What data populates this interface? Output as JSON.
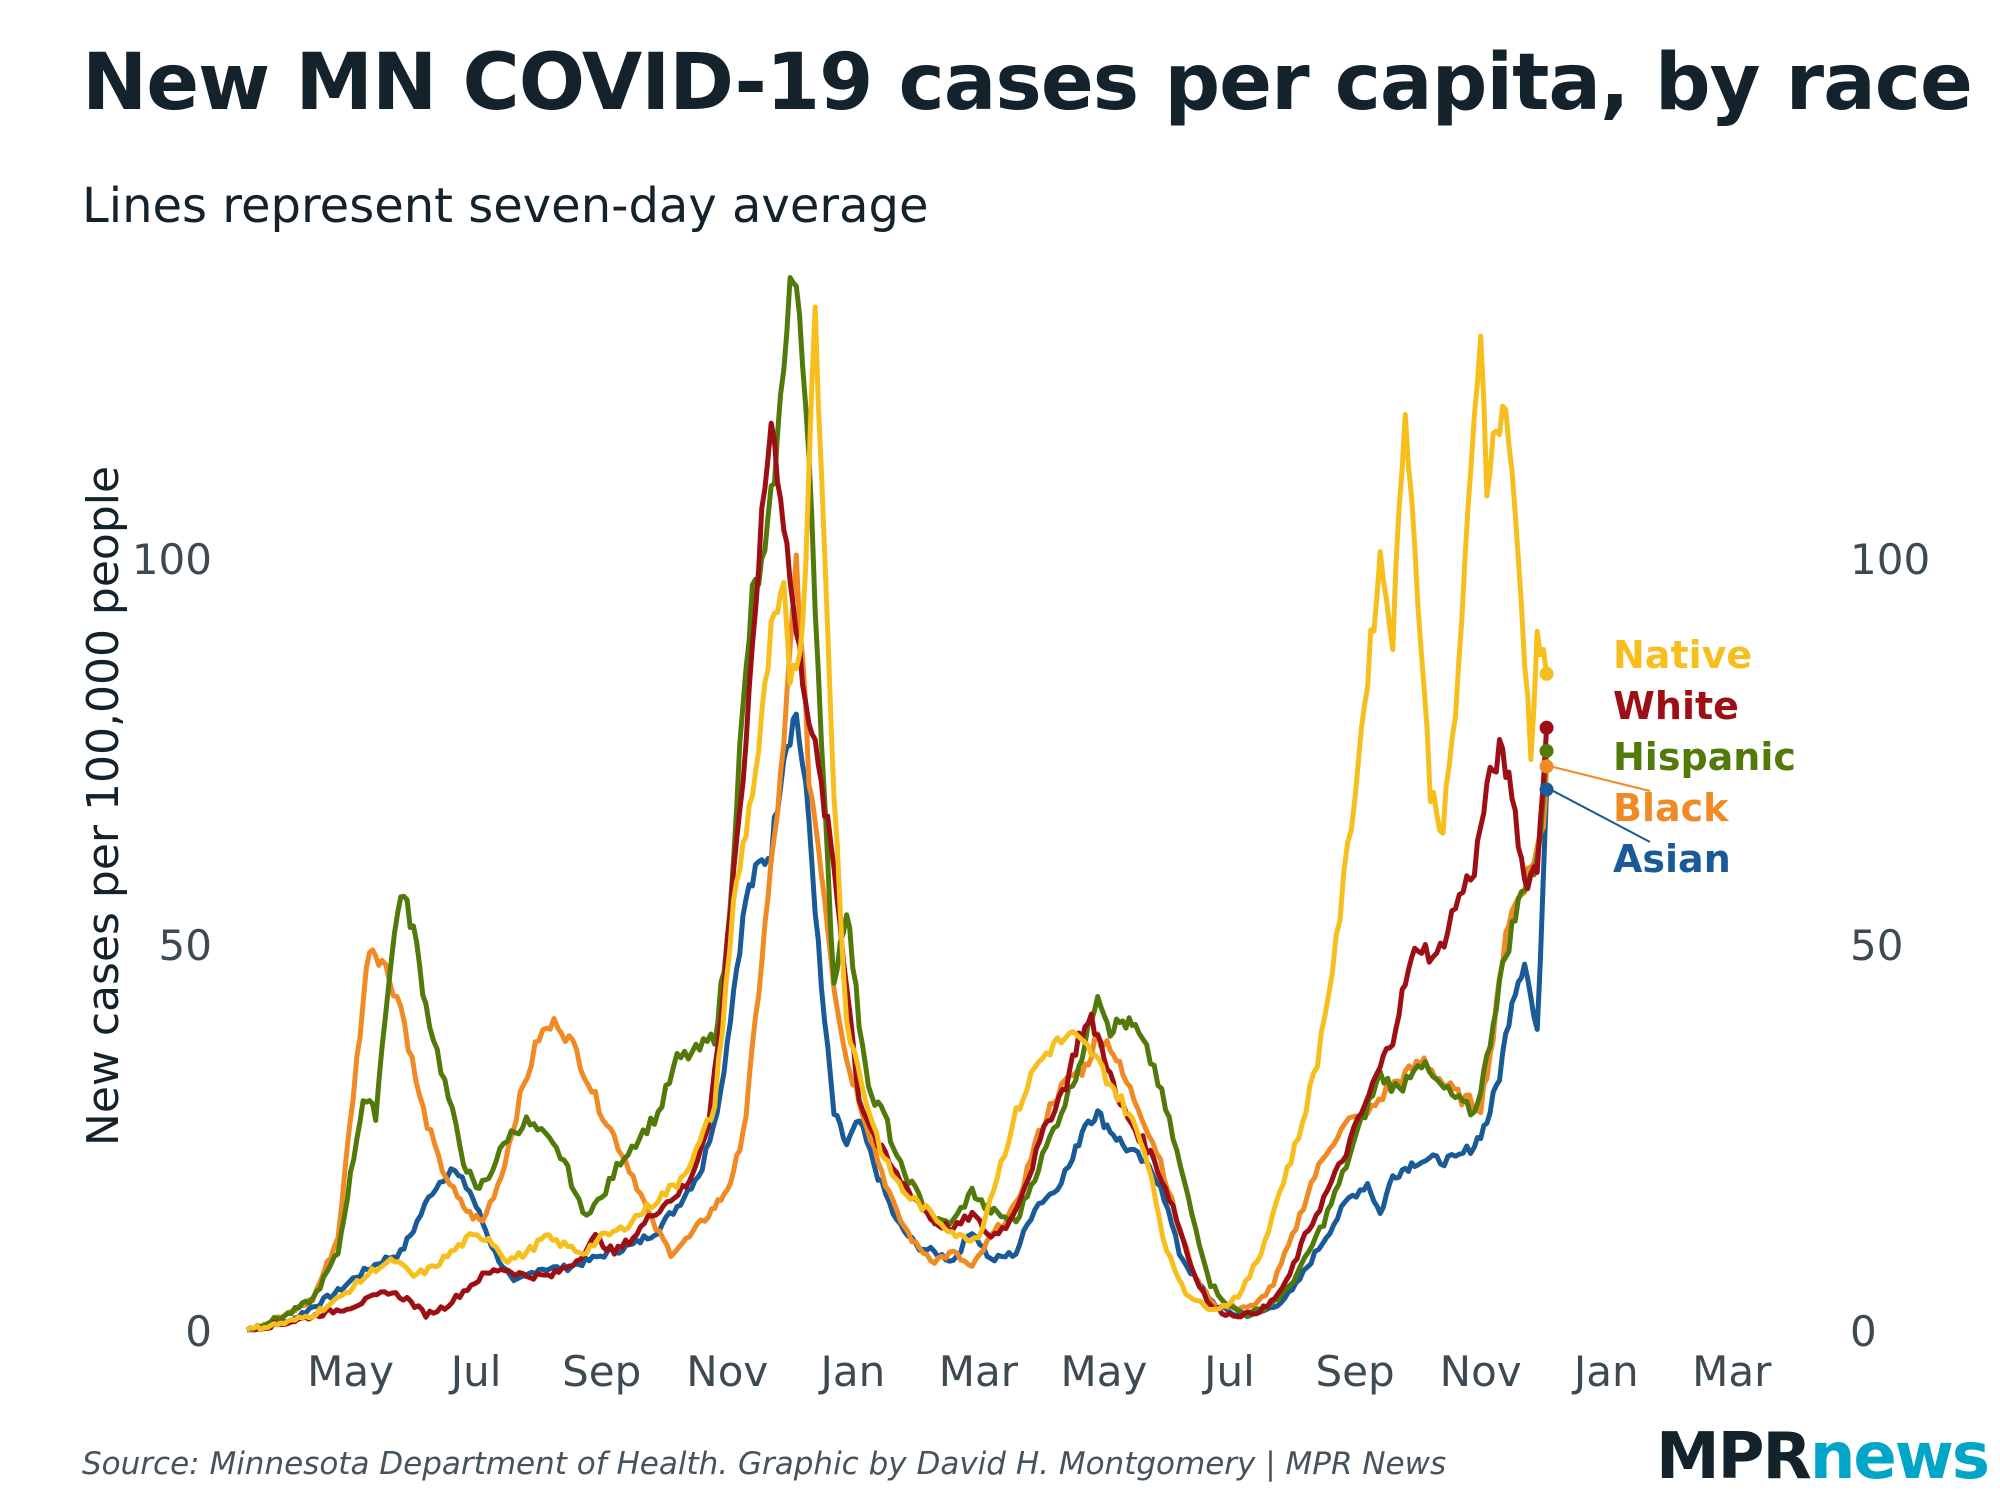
{
  "title": "New MN COVID-19 cases per capita, by race",
  "subtitle": "Lines represent seven-day average",
  "source": "Source: Minnesota Department of Health. Graphic by David H. Montgomery | MPR News",
  "logo": {
    "mpr": "MPR",
    "news": "news"
  },
  "chart_data": {
    "type": "line",
    "title": "New MN COVID-19 cases per capita, by race",
    "subtitle": "Lines represent seven-day average",
    "xlabel": "",
    "ylabel": "New cases per 100,000 people",
    "x_unit": "months since 2020-03-01",
    "xlim": [
      0.35,
      24.8
    ],
    "ylim": [
      0,
      136
    ],
    "yticks": [
      0,
      50,
      100
    ],
    "ytick_labels": [
      "0",
      "50",
      "100"
    ],
    "xticks": [
      {
        "at": 2,
        "label": "May"
      },
      {
        "at": 4,
        "label": "Jul"
      },
      {
        "at": 6,
        "label": "Sep"
      },
      {
        "at": 8,
        "label": "Nov"
      },
      {
        "at": 10,
        "label": "Jan"
      },
      {
        "at": 12,
        "label": "Mar"
      },
      {
        "at": 14,
        "label": "May"
      },
      {
        "at": 16,
        "label": "Jul"
      },
      {
        "at": 18,
        "label": "Sep"
      },
      {
        "at": 20,
        "label": "Nov"
      },
      {
        "at": 22,
        "label": "Jan"
      },
      {
        "at": 24,
        "label": "Mar"
      }
    ],
    "grid": false,
    "legend": "direct labels at right end of lines",
    "series": [
      {
        "name": "Asian",
        "color": "#1a5a96",
        "label_order": 4,
        "x": [
          0.35,
          1.0,
          1.4,
          1.8,
          2.1,
          2.5,
          2.8,
          3.0,
          3.3,
          3.6,
          3.9,
          4.1,
          4.3,
          4.6,
          5.0,
          5.4,
          5.8,
          6.1,
          6.5,
          6.9,
          7.2,
          7.6,
          7.9,
          8.1,
          8.3,
          8.5,
          8.7,
          8.9,
          9.1,
          9.3,
          9.5,
          9.7,
          9.9,
          10.1,
          10.4,
          10.7,
          11.0,
          11.3,
          11.6,
          11.9,
          12.2,
          12.6,
          12.9,
          13.2,
          13.5,
          13.7,
          13.9,
          14.1,
          14.3,
          14.6,
          14.9,
          15.2,
          15.5,
          15.8,
          16.1,
          16.4,
          16.7,
          17.0,
          17.3,
          17.6,
          17.9,
          18.2,
          18.4,
          18.6,
          18.8,
          19.0,
          19.3,
          19.6,
          19.9,
          20.1,
          20.3,
          20.5,
          20.7,
          20.9,
          21.05
        ],
        "y": [
          0,
          1,
          3,
          5,
          7,
          9,
          10,
          13,
          18,
          21,
          18,
          14,
          10,
          6,
          8,
          8,
          9,
          10,
          11,
          13,
          16,
          21,
          31,
          44,
          56,
          60,
          62,
          75,
          80,
          66,
          44,
          28,
          24,
          27,
          20,
          14,
          11,
          10,
          9,
          13,
          9,
          10,
          16,
          18,
          22,
          27,
          28,
          26,
          24,
          22,
          19,
          10,
          6,
          3,
          2,
          2,
          3,
          5,
          9,
          13,
          17,
          19,
          15,
          20,
          21,
          22,
          22,
          22,
          24,
          27,
          33,
          43,
          48,
          38,
          70
        ]
      },
      {
        "name": "Black",
        "color": "#f08a24",
        "label_order": 3,
        "x": [
          0.35,
          1.0,
          1.4,
          1.8,
          2.1,
          2.3,
          2.5,
          2.8,
          3.1,
          3.4,
          3.7,
          3.9,
          4.1,
          4.4,
          4.7,
          5.0,
          5.3,
          5.6,
          5.9,
          6.2,
          6.5,
          6.8,
          7.1,
          7.4,
          7.7,
          7.9,
          8.1,
          8.3,
          8.5,
          8.7,
          8.9,
          9.1,
          9.3,
          9.5,
          9.7,
          9.9,
          10.1,
          10.4,
          10.7,
          11.0,
          11.3,
          11.6,
          11.9,
          12.2,
          12.6,
          12.9,
          13.2,
          13.5,
          13.7,
          13.9,
          14.1,
          14.3,
          14.6,
          14.9,
          15.2,
          15.5,
          15.8,
          16.1,
          16.4,
          16.7,
          17.0,
          17.3,
          17.6,
          17.9,
          18.2,
          18.5,
          18.8,
          19.1,
          19.4,
          19.7,
          20.0,
          20.2,
          20.4,
          20.6,
          20.8,
          21.0,
          21.05
        ],
        "y": [
          0,
          2,
          4,
          12,
          35,
          50,
          48,
          42,
          30,
          22,
          17,
          15,
          14,
          20,
          30,
          38,
          40,
          36,
          30,
          25,
          20,
          14,
          10,
          12,
          15,
          17,
          20,
          28,
          44,
          60,
          75,
          100,
          72,
          60,
          45,
          35,
          30,
          22,
          15,
          11,
          9,
          10,
          8,
          12,
          16,
          24,
          30,
          33,
          34,
          38,
          37,
          33,
          28,
          22,
          13,
          6,
          3,
          3,
          3,
          6,
          12,
          19,
          24,
          27,
          28,
          31,
          33,
          35,
          32,
          30,
          29,
          38,
          52,
          56,
          60,
          65,
          73
        ]
      },
      {
        "name": "Hispanic",
        "color": "#527a0b",
        "label_order": 2,
        "x": [
          0.35,
          1.0,
          1.4,
          1.8,
          2.0,
          2.2,
          2.4,
          2.6,
          2.8,
          3.0,
          3.2,
          3.5,
          3.8,
          4.0,
          4.2,
          4.5,
          4.8,
          5.1,
          5.4,
          5.7,
          6.0,
          6.3,
          6.6,
          6.9,
          7.2,
          7.5,
          7.8,
          8.0,
          8.2,
          8.4,
          8.6,
          8.8,
          9.0,
          9.1,
          9.3,
          9.5,
          9.7,
          9.9,
          10.1,
          10.3,
          10.5,
          10.7,
          11.0,
          11.3,
          11.6,
          11.9,
          12.1,
          12.3,
          12.6,
          12.9,
          13.2,
          13.5,
          13.7,
          13.9,
          14.1,
          14.3,
          14.5,
          14.8,
          15.1,
          15.4,
          15.7,
          16.0,
          16.3,
          16.6,
          16.9,
          17.2,
          17.5,
          17.8,
          18.1,
          18.4,
          18.7,
          19.0,
          19.3,
          19.6,
          19.9,
          20.1,
          20.3,
          20.5,
          20.7,
          20.9,
          21.05
        ],
        "y": [
          0,
          2,
          4,
          10,
          20,
          30,
          28,
          45,
          57,
          52,
          42,
          32,
          22,
          18,
          20,
          25,
          27,
          25,
          22,
          15,
          17,
          22,
          25,
          28,
          35,
          36,
          38,
          50,
          75,
          95,
          100,
          115,
          136,
          135,
          115,
          75,
          45,
          55,
          40,
          30,
          28,
          22,
          18,
          14,
          14,
          18,
          16,
          15,
          14,
          20,
          26,
          32,
          37,
          44,
          39,
          40,
          39,
          34,
          25,
          15,
          6,
          3,
          2,
          3,
          5,
          9,
          14,
          20,
          27,
          33,
          31,
          35,
          32,
          30,
          28,
          35,
          45,
          52,
          58,
          60,
          75
        ]
      },
      {
        "name": "White",
        "color": "#9c0f14",
        "label_order": 1,
        "x": [
          0.35,
          1.0,
          1.5,
          2.0,
          2.3,
          2.6,
          2.9,
          3.2,
          3.5,
          3.8,
          4.1,
          4.4,
          4.8,
          5.2,
          5.6,
          5.9,
          6.2,
          6.5,
          6.8,
          7.1,
          7.4,
          7.7,
          7.9,
          8.1,
          8.3,
          8.5,
          8.7,
          8.9,
          9.1,
          9.3,
          9.5,
          9.7,
          9.9,
          10.1,
          10.4,
          10.7,
          11.0,
          11.3,
          11.6,
          11.9,
          12.2,
          12.5,
          12.8,
          13.1,
          13.4,
          13.6,
          13.8,
          14.0,
          14.2,
          14.5,
          14.8,
          15.1,
          15.4,
          15.7,
          16.0,
          16.3,
          16.6,
          16.9,
          17.2,
          17.5,
          17.8,
          18.1,
          18.4,
          18.6,
          18.8,
          19.0,
          19.3,
          19.6,
          19.9,
          20.1,
          20.3,
          20.5,
          20.7,
          20.9,
          21.05
        ],
        "y": [
          0,
          1,
          2,
          3,
          4,
          5,
          4,
          2,
          3,
          5,
          7,
          8,
          7,
          7,
          9,
          12,
          10,
          12,
          15,
          17,
          19,
          27,
          40,
          60,
          75,
          100,
          118,
          105,
          90,
          80,
          70,
          60,
          45,
          30,
          24,
          20,
          17,
          14,
          13,
          15,
          12,
          14,
          20,
          27,
          32,
          38,
          40,
          36,
          30,
          26,
          22,
          16,
          8,
          3,
          2,
          2,
          3,
          6,
          12,
          17,
          22,
          28,
          34,
          38,
          45,
          50,
          48,
          55,
          60,
          70,
          75,
          70,
          58,
          60,
          78
        ]
      },
      {
        "name": "Native",
        "color": "#f6bf1e",
        "label_order": 0,
        "x": [
          0.35,
          1.0,
          1.4,
          1.8,
          2.1,
          2.4,
          2.7,
          3.0,
          3.3,
          3.6,
          3.9,
          4.2,
          4.5,
          4.8,
          5.1,
          5.4,
          5.7,
          6.0,
          6.3,
          6.6,
          6.9,
          7.2,
          7.5,
          7.8,
          8.1,
          8.3,
          8.5,
          8.7,
          8.9,
          9.0,
          9.2,
          9.4,
          9.5,
          9.7,
          9.9,
          10.2,
          10.5,
          10.8,
          11.1,
          11.4,
          11.7,
          12.0,
          12.3,
          12.6,
          12.9,
          13.2,
          13.5,
          13.8,
          14.1,
          14.4,
          14.7,
          15.0,
          15.3,
          15.6,
          15.9,
          16.2,
          16.5,
          16.8,
          17.1,
          17.4,
          17.7,
          18.0,
          18.2,
          18.4,
          18.6,
          18.8,
          19.0,
          19.2,
          19.4,
          19.6,
          19.8,
          20.0,
          20.1,
          20.2,
          20.4,
          20.6,
          20.8,
          20.9,
          21.05
        ],
        "y": [
          0,
          1,
          2,
          4,
          6,
          8,
          9,
          7,
          8,
          10,
          12,
          12,
          9,
          10,
          12,
          11,
          10,
          12,
          13,
          15,
          17,
          19,
          23,
          29,
          55,
          65,
          75,
          90,
          95,
          85,
          90,
          134,
          110,
          70,
          40,
          30,
          22,
          18,
          16,
          14,
          12,
          12,
          20,
          28,
          34,
          37,
          38,
          36,
          32,
          28,
          22,
          10,
          5,
          3,
          3,
          5,
          10,
          18,
          25,
          35,
          50,
          70,
          85,
          100,
          90,
          120,
          95,
          70,
          65,
          80,
          105,
          130,
          110,
          115,
          120,
          100,
          75,
          90,
          85
        ]
      }
    ]
  }
}
